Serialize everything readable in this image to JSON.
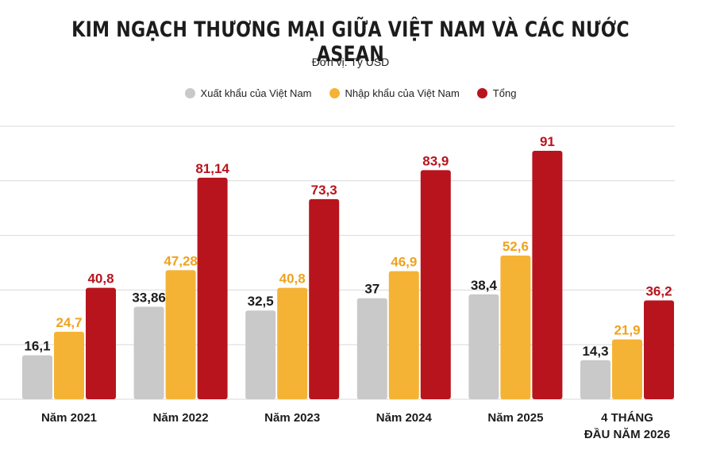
{
  "colors": {
    "export": "#c9c9c9",
    "import": "#f5b335",
    "total": "#b8141d",
    "total_text": "#b8141d",
    "import_text": "#f0a21e",
    "export_text": "#1c1c1c",
    "grid": "#d9d9d9"
  },
  "chart_data": {
    "type": "bar",
    "title": "KIM NGẠCH THƯƠNG MẠI GIỮA VIỆT NAM VÀ CÁC NƯỚC ASEAN",
    "subtitle": "Đơn vị: Tỷ USD",
    "categories": [
      [
        "Năm 2021"
      ],
      [
        "Năm 2022"
      ],
      [
        "Năm 2023"
      ],
      [
        "Năm 2024"
      ],
      [
        "Năm 2025"
      ],
      [
        "4 THÁNG",
        "ĐẦU NĂM 2026"
      ]
    ],
    "series": [
      {
        "name": "Xuất khẩu của Việt Nam",
        "values": [
          16.1,
          33.86,
          32.5,
          37,
          38.4,
          14.3
        ],
        "labels": [
          "16,1",
          "33,86",
          "32,5",
          "37",
          "38,4",
          "14,3"
        ]
      },
      {
        "name": "Nhập khẩu của Việt Nam",
        "values": [
          24.7,
          47.28,
          40.8,
          46.9,
          52.6,
          21.9
        ],
        "labels": [
          "24,7",
          "47,28",
          "40,8",
          "46,9",
          "52,6",
          "21,9"
        ]
      },
      {
        "name": "Tổng",
        "values": [
          40.8,
          81.14,
          73.3,
          83.9,
          91,
          36.2
        ],
        "labels": [
          "40,8",
          "81,14",
          "73,3",
          "83,9",
          "91",
          "36,2"
        ]
      }
    ],
    "ylim": [
      0,
      100
    ],
    "grid": true,
    "legend": "top"
  }
}
